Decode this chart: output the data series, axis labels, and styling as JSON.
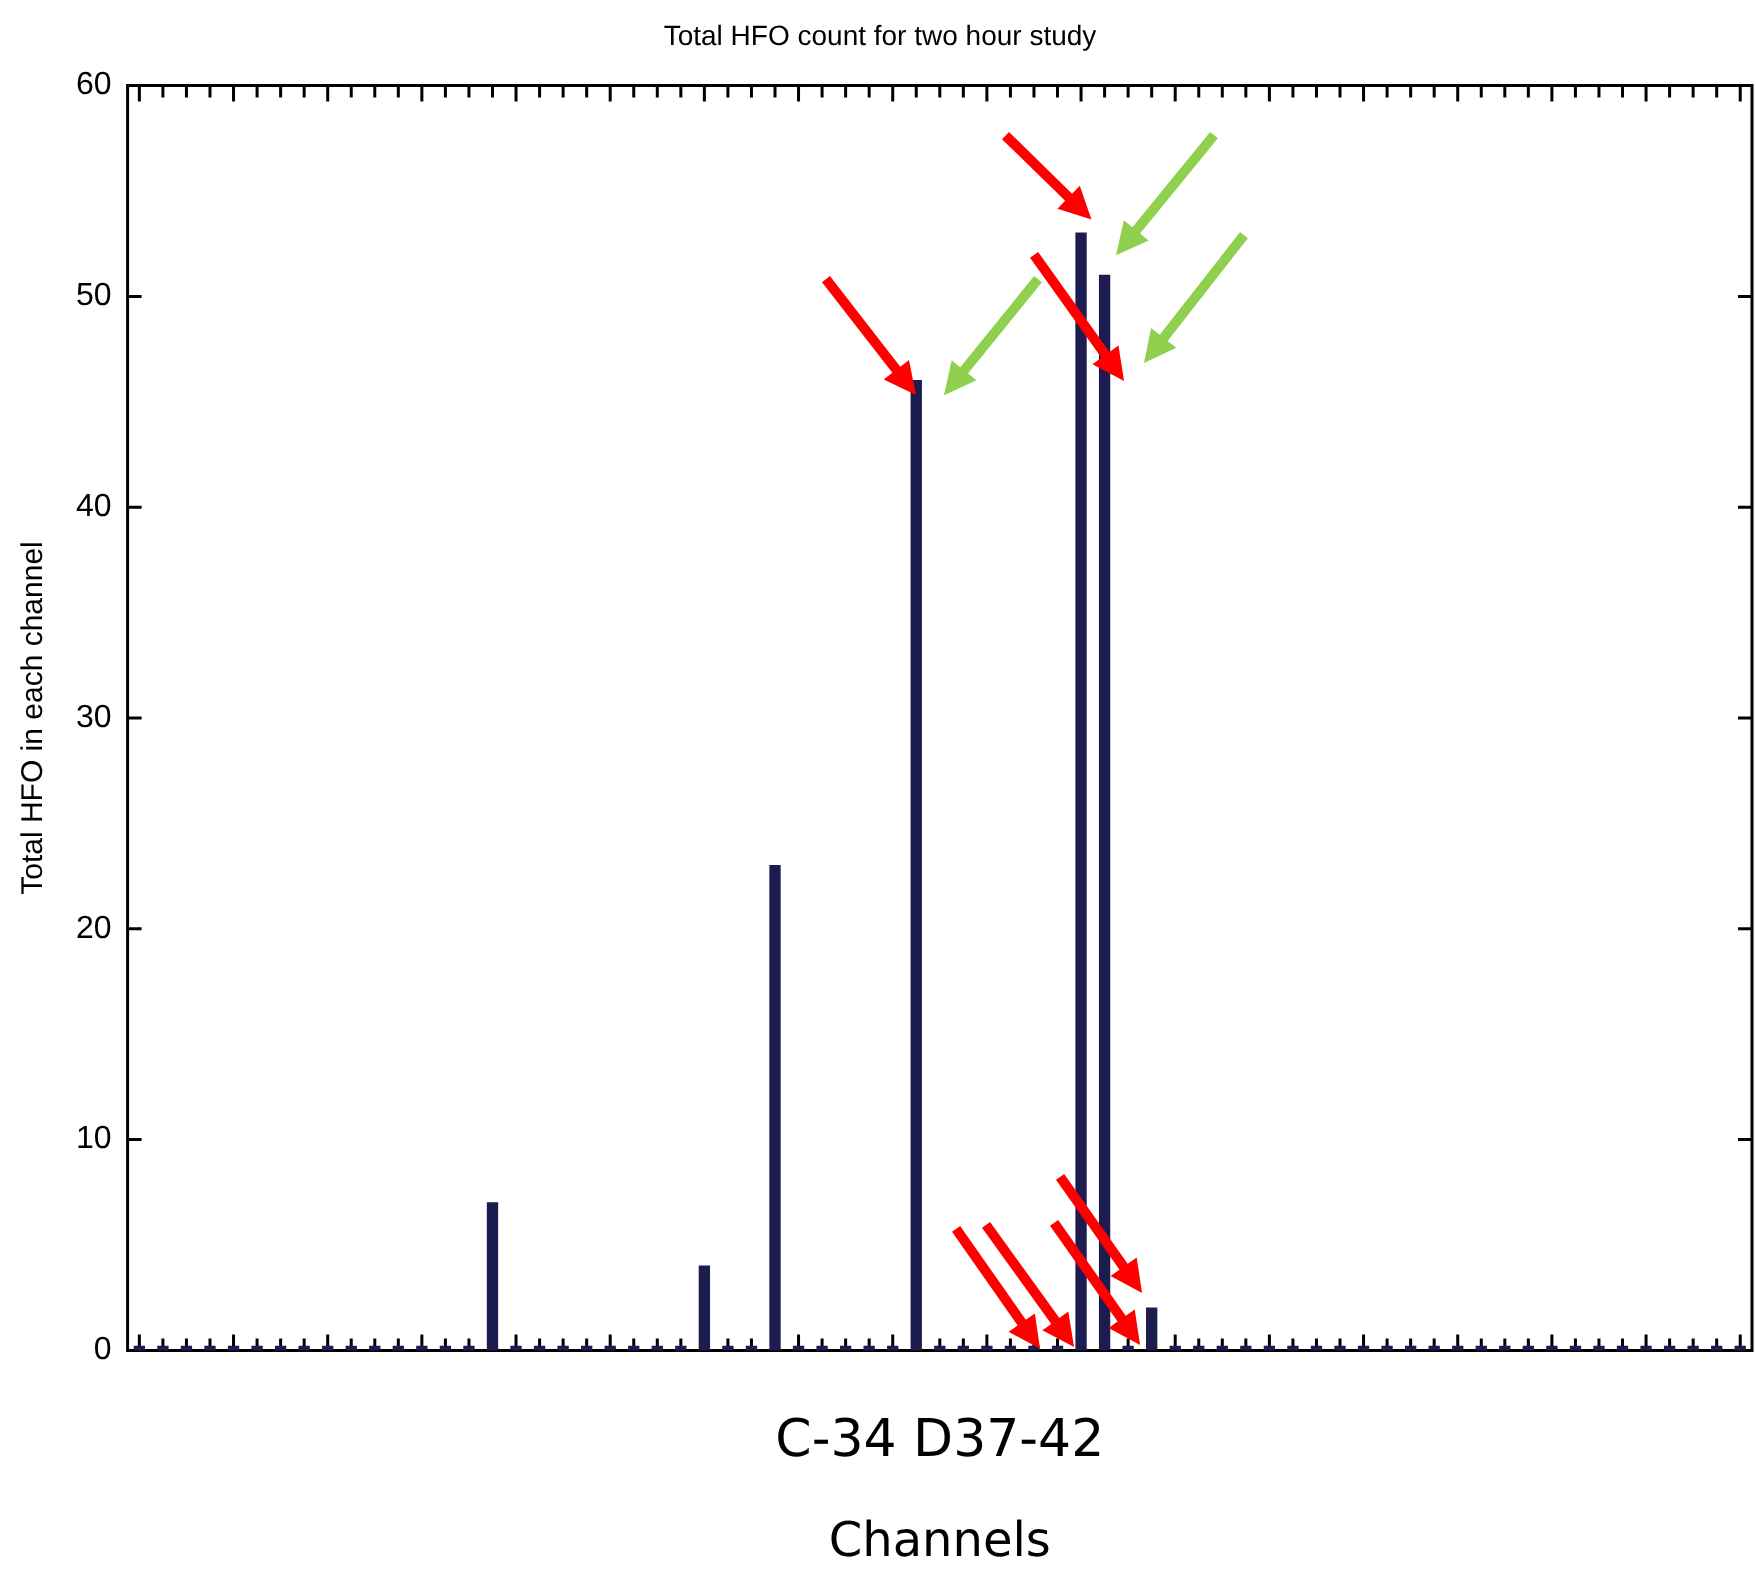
{
  "chart_data": {
    "type": "bar",
    "title": "Total HFO count for two hour study",
    "xlabel": "Channels",
    "ylabel": "Total HFO in each channel",
    "categories": [
      null,
      null,
      null,
      null,
      null,
      null,
      null,
      null,
      null,
      null,
      null,
      null,
      null,
      null,
      null,
      null,
      null,
      null,
      null,
      null,
      null,
      null,
      null,
      null,
      null,
      null,
      null,
      null,
      null,
      null,
      null,
      null,
      null,
      null,
      null,
      null,
      null,
      null,
      null,
      null,
      null,
      null,
      null,
      null,
      null,
      null,
      null,
      null,
      null,
      null,
      null,
      null,
      null,
      null,
      null,
      null,
      null,
      null,
      null,
      null,
      null,
      null,
      null,
      null,
      null,
      null,
      null,
      null,
      null
    ],
    "values": [
      0,
      0,
      0,
      0,
      0,
      0,
      0,
      0,
      0,
      0,
      0,
      0,
      0,
      0,
      0,
      7,
      0,
      0,
      0,
      0,
      0,
      0,
      0,
      0,
      4,
      0,
      0,
      23,
      0,
      0,
      0,
      0,
      0,
      46,
      0,
      0,
      0,
      0,
      0,
      0,
      53,
      51,
      0,
      2,
      0,
      0,
      0,
      0,
      0,
      0,
      0,
      0,
      0,
      0,
      0,
      0,
      0,
      0,
      0,
      0,
      0,
      0,
      0,
      0,
      0,
      0,
      0,
      0,
      0
    ],
    "color": "#1c1c50",
    "ylim": [
      0,
      60
    ],
    "yticks": [
      0,
      10,
      20,
      30,
      40,
      50,
      60
    ],
    "tick_labels": "y",
    "legend": false,
    "annotations": [
      "C-34 D37-42"
    ]
  }
}
